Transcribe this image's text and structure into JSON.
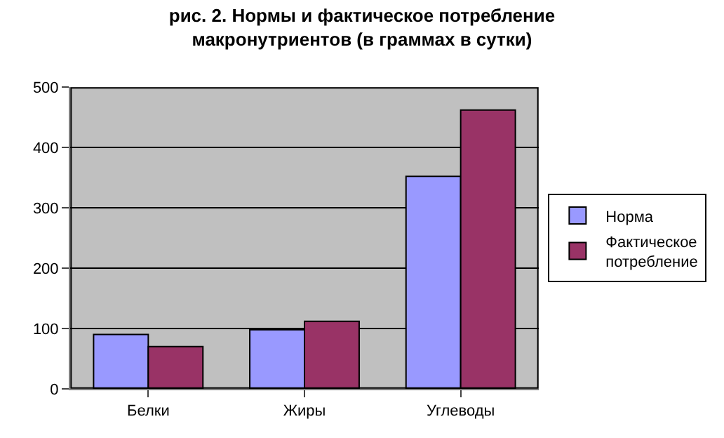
{
  "chart_data": {
    "type": "bar",
    "title": "рис. 2. Нормы и фактическое потребление\nмакронутриентов (в граммах в сутки)",
    "categories": [
      "Белки",
      "Жиры",
      "Углеводы"
    ],
    "series": [
      {
        "name": "Норма",
        "color": "#9999ff",
        "values": [
          90,
          98,
          352
        ]
      },
      {
        "name": "Фактическое\nпотребление",
        "color": "#993366",
        "values": [
          70,
          112,
          462
        ]
      }
    ],
    "ylim": [
      0,
      500
    ],
    "yticks": [
      0,
      100,
      200,
      300,
      400,
      500
    ],
    "grid": "y",
    "legend": "right"
  }
}
